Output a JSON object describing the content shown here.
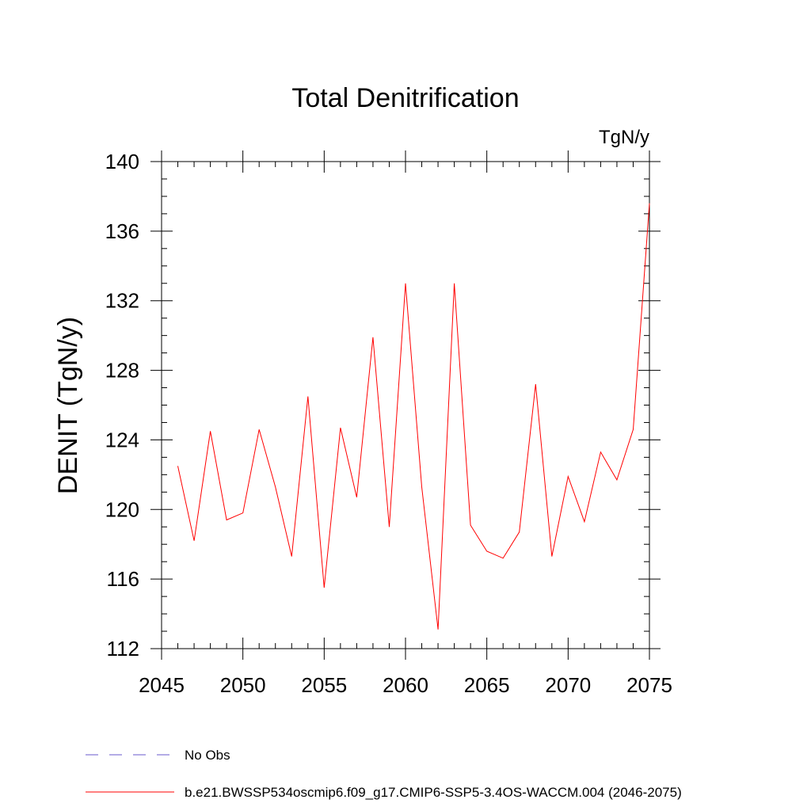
{
  "chart_data": {
    "type": "line",
    "title": "Total Denitrification",
    "units_label": "TgN/y",
    "xlabel": "",
    "ylabel": "DENIT  (TgN/y)",
    "xlim": [
      2045,
      2075
    ],
    "ylim": [
      112,
      140
    ],
    "x_ticks": [
      2045,
      2050,
      2055,
      2060,
      2065,
      2070,
      2075
    ],
    "y_ticks": [
      112,
      116,
      120,
      124,
      128,
      132,
      136,
      140
    ],
    "grid": false,
    "legend_position": "bottom-left",
    "series": [
      {
        "name": "b.e21.BWSSP534oscmip6.f09_g17.CMIP6-SSP5-3.4OS-WACCM.004 (2046-2075)",
        "color": "#ff0000",
        "style": "solid",
        "x": [
          2046,
          2047,
          2048,
          2049,
          2050,
          2051,
          2052,
          2053,
          2054,
          2055,
          2056,
          2057,
          2058,
          2059,
          2060,
          2061,
          2062,
          2063,
          2064,
          2065,
          2066,
          2067,
          2068,
          2069,
          2070,
          2071,
          2072,
          2073,
          2074,
          2075
        ],
        "values": [
          122.5,
          118.2,
          124.5,
          119.4,
          119.8,
          124.6,
          121.3,
          117.3,
          126.5,
          115.5,
          124.7,
          120.7,
          129.9,
          119.0,
          133.0,
          121.3,
          113.1,
          133.0,
          119.1,
          117.6,
          117.2,
          118.7,
          127.2,
          117.3,
          121.9,
          119.3,
          123.3,
          121.7,
          124.6,
          137.6
        ]
      }
    ],
    "legend": [
      {
        "label": "No Obs",
        "color": "#6a5acd",
        "style": "dashed"
      },
      {
        "label": "b.e21.BWSSP534oscmip6.f09_g17.CMIP6-SSP5-3.4OS-WACCM.004 (2046-2075)",
        "color": "#ff0000",
        "style": "solid"
      }
    ]
  }
}
